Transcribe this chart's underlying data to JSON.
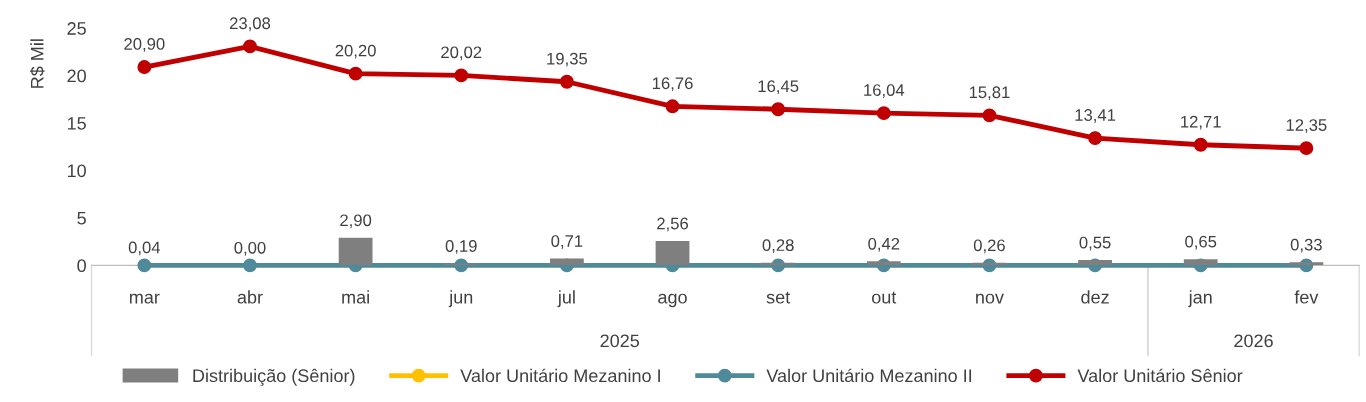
{
  "chart_data": {
    "type": "bar",
    "ylabel": "R$ Mil",
    "categories": [
      "mar",
      "abr",
      "mai",
      "jun",
      "jul",
      "ago",
      "set",
      "out",
      "nov",
      "dez",
      "jan",
      "fev"
    ],
    "series": [
      {
        "name": "Distribuição (Sênior)",
        "color": "#7f7f7f",
        "values": [
          0.04,
          0.0,
          2.9,
          0.19,
          0.71,
          2.56,
          0.28,
          0.42,
          0.26,
          0.55,
          0.65,
          0.33
        ],
        "value_labels": [
          "0,04",
          "0,00",
          "2,90",
          "0,19",
          "0,71",
          "2,56",
          "0,28",
          "0,42",
          "0,26",
          "0,55",
          "0,65",
          "0,33"
        ]
      },
      {
        "name": "Valor Unitário Mezanino I",
        "type": "line",
        "color": "#ffc000",
        "values": [
          null,
          null,
          null,
          null,
          null,
          null,
          null,
          null,
          null,
          null,
          null,
          null
        ]
      },
      {
        "name": "Valor Unitário Mezanino II",
        "type": "line",
        "color": "#4f8a9a",
        "values": [
          0,
          0,
          0,
          0,
          0,
          0,
          0,
          0,
          0,
          0,
          0,
          0
        ]
      },
      {
        "name": "Valor Unitário Sênior",
        "type": "line",
        "color": "#c00000",
        "values": [
          20.9,
          23.08,
          20.2,
          20.02,
          19.35,
          16.76,
          16.45,
          16.04,
          15.81,
          13.41,
          12.71,
          12.35
        ],
        "value_labels": [
          "20,90",
          "23,08",
          "20,20",
          "20,02",
          "19,35",
          "16,76",
          "16,45",
          "16,04",
          "15,81",
          "13,41",
          "12,71",
          "12,35"
        ]
      }
    ],
    "ylim": [
      0,
      25
    ],
    "yticks": [
      0,
      5,
      10,
      15,
      20,
      25
    ],
    "annotations": [
      "2025",
      "2026"
    ],
    "marker": "circle",
    "line_style": "solid",
    "grid": false,
    "legend": "bottom"
  }
}
